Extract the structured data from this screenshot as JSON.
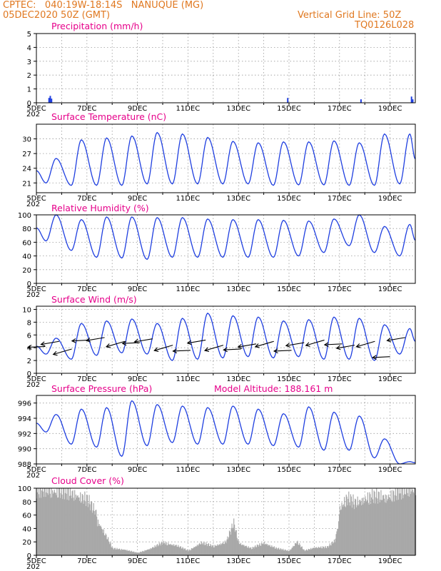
{
  "header": {
    "line1": "CPTEC:   040:19W-18:14S   NANUQUE (MG)",
    "line2": "05DEC2020 50Z (GMT)",
    "right1": "Vertical Grid Line: 50Z",
    "right2": "TQ0126L028",
    "model_altitude": "Model Altitude: 188.161 m"
  },
  "colors": {
    "header": "#e07820",
    "title": "#e6008a",
    "line": "#1f3fe0",
    "cloud": "#a8a8a8"
  },
  "x_axis": {
    "start_day": 5,
    "end_day": 20,
    "tick_labels": [
      "5DEC",
      "7DEC",
      "9DEC",
      "11DEC",
      "13DEC",
      "15DEC",
      "17DEC",
      "19DEC"
    ],
    "tick_days": [
      5,
      7,
      9,
      11,
      13,
      15,
      17,
      19
    ],
    "year_stub": "202"
  },
  "chart_data": [
    {
      "type": "bar",
      "title": "Precipitation (mm/h)",
      "ylim": [
        0,
        5
      ],
      "yticks": [
        0,
        1,
        2,
        3,
        4,
        5
      ],
      "spikes": [
        [
          5.5,
          0.35
        ],
        [
          5.55,
          0.5
        ],
        [
          5.6,
          0.3
        ],
        [
          14.95,
          0.35
        ],
        [
          17.85,
          0.25
        ],
        [
          19.85,
          0.45
        ],
        [
          19.9,
          0.25
        ]
      ]
    },
    {
      "type": "line",
      "title": "Surface Temperature (nC)",
      "ylim": [
        19,
        33
      ],
      "yticks": [
        21,
        24,
        27,
        30
      ],
      "maxima": [
        26,
        29.8,
        30.2,
        30.6,
        31.3,
        31.0,
        30.3,
        29.5,
        29.2,
        29.4,
        29.4,
        29.6,
        29.2,
        31.0,
        31.0
      ],
      "minima": [
        21.0,
        20.5,
        20.5,
        20.5,
        20.8,
        20.8,
        20.8,
        20.8,
        20.8,
        20.5,
        20.6,
        20.6,
        20.5,
        20.5,
        20.8
      ]
    },
    {
      "type": "line",
      "title": "Relative Humidity (%)",
      "ylim": [
        0,
        100
      ],
      "yticks": [
        0,
        20,
        40,
        60,
        80,
        100
      ],
      "maxima": [
        100,
        93,
        97,
        97,
        96,
        96,
        94,
        93,
        93,
        92,
        91,
        94,
        100,
        83,
        86
      ],
      "minima": [
        62,
        48,
        38,
        37,
        35,
        38,
        38,
        38,
        38,
        38,
        40,
        45,
        55,
        45,
        40
      ]
    },
    {
      "type": "line",
      "title": "Surface Wind (m/s)",
      "ylim": [
        0,
        10.5
      ],
      "yticks": [
        0,
        2,
        4,
        6,
        8,
        10
      ],
      "maxima": [
        5.5,
        7.8,
        8.2,
        8.5,
        7.8,
        8.6,
        9.4,
        9.0,
        8.8,
        8.2,
        8.4,
        8.8,
        8.6,
        7.6,
        7.0
      ],
      "minima": [
        3.0,
        2.2,
        2.8,
        3.2,
        3.0,
        2.0,
        2.2,
        2.4,
        2.6,
        2.4,
        2.6,
        2.2,
        2.2,
        2.0,
        3.0
      ],
      "arrow_days": [
        5.35,
        5.9,
        6.4,
        7.1,
        7.7,
        8.5,
        9.1,
        9.6,
        10.4,
        11.1,
        11.7,
        12.4,
        13.1,
        13.7,
        14.4,
        15.1,
        15.6,
        16.4,
        17.1,
        17.6,
        18.4,
        19.0,
        19.6
      ],
      "arrow_speeds": [
        4.2,
        5.0,
        3.8,
        5.2,
        5.6,
        5.0,
        4.8,
        5.4,
        4.4,
        3.6,
        5.2,
        4.4,
        3.8,
        4.6,
        5.0,
        3.6,
        4.8,
        5.2,
        4.6,
        4.4,
        5.0,
        2.6,
        5.6
      ]
    },
    {
      "type": "line",
      "title": "Surface Pressure (hPa)",
      "ylim": [
        988,
        997
      ],
      "yticks": [
        988,
        990,
        992,
        994,
        996
      ],
      "maxima": [
        994.5,
        995.2,
        995.4,
        996.3,
        995.8,
        995.6,
        995.4,
        995.6,
        995.2,
        994.6,
        995.5,
        994.8,
        994.3,
        991.3,
        988.3
      ],
      "minima": [
        992.2,
        990.6,
        990.2,
        989.0,
        990.4,
        990.8,
        990.6,
        990.6,
        990.6,
        990.4,
        990.2,
        989.8,
        989.8,
        988.8,
        988
      ]
    },
    {
      "type": "area",
      "title": "Cloud Cover (%)",
      "ylim": [
        0,
        100
      ],
      "yticks": [
        0,
        20,
        40,
        60,
        80,
        100
      ],
      "profile": [
        [
          5.0,
          92
        ],
        [
          5.3,
          96
        ],
        [
          5.6,
          95
        ],
        [
          6.0,
          92
        ],
        [
          6.5,
          90
        ],
        [
          7.0,
          80
        ],
        [
          7.5,
          55
        ],
        [
          7.8,
          30
        ],
        [
          8.0,
          12
        ],
        [
          8.5,
          10
        ],
        [
          9.0,
          4
        ],
        [
          9.5,
          12
        ],
        [
          10.0,
          22
        ],
        [
          10.5,
          18
        ],
        [
          11.0,
          8
        ],
        [
          11.5,
          22
        ],
        [
          12.0,
          16
        ],
        [
          12.5,
          24
        ],
        [
          12.8,
          56
        ],
        [
          13.0,
          22
        ],
        [
          13.5,
          12
        ],
        [
          14.0,
          22
        ],
        [
          14.5,
          12
        ],
        [
          15.0,
          8
        ],
        [
          15.3,
          24
        ],
        [
          15.6,
          8
        ],
        [
          16.0,
          14
        ],
        [
          16.5,
          14
        ],
        [
          16.8,
          26
        ],
        [
          17.0,
          70
        ],
        [
          17.3,
          82
        ],
        [
          17.6,
          76
        ],
        [
          17.9,
          82
        ],
        [
          18.2,
          84
        ],
        [
          18.6,
          86
        ],
        [
          19.0,
          86
        ],
        [
          19.4,
          92
        ],
        [
          19.7,
          96
        ],
        [
          20.0,
          97
        ]
      ]
    }
  ]
}
